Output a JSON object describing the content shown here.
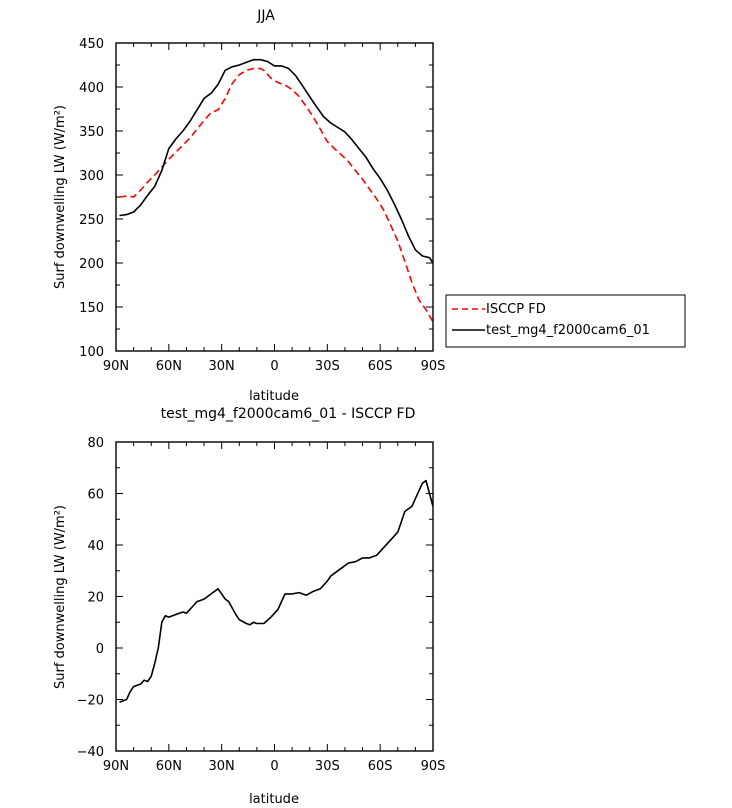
{
  "chart_data": [
    {
      "type": "line",
      "title": "JJA",
      "xlabel": "latitude",
      "ylabel": "Surf downwelling LW (W/m²)",
      "xlim": [
        90,
        -90
      ],
      "ylim": [
        100,
        450
      ],
      "yticks": [
        100,
        150,
        200,
        250,
        300,
        350,
        400,
        450
      ],
      "xticks": [
        {
          "value": 90,
          "label": "90N"
        },
        {
          "value": 60,
          "label": "60N"
        },
        {
          "value": 30,
          "label": "30N"
        },
        {
          "value": 0,
          "label": "0"
        },
        {
          "value": -30,
          "label": "30S"
        },
        {
          "value": -60,
          "label": "60S"
        },
        {
          "value": -90,
          "label": "90S"
        }
      ],
      "legend": {
        "position": "right"
      },
      "series": [
        {
          "name": "ISCCP FD",
          "color": "#ff0000",
          "dash": "dashed",
          "points": [
            [
              88,
              275
            ],
            [
              84,
              276
            ],
            [
              80,
              275
            ],
            [
              76,
              283
            ],
            [
              72,
              292
            ],
            [
              68,
              300
            ],
            [
              64,
              309
            ],
            [
              60,
              318
            ],
            [
              56,
              326
            ],
            [
              52,
              334
            ],
            [
              48,
              342
            ],
            [
              44,
              352
            ],
            [
              40,
              362
            ],
            [
              36,
              371
            ],
            [
              32,
              374
            ],
            [
              28,
              387
            ],
            [
              24,
              404
            ],
            [
              20,
              414
            ],
            [
              16,
              419
            ],
            [
              12,
              421
            ],
            [
              8,
              421
            ],
            [
              6,
              419
            ],
            [
              2,
              410
            ],
            [
              -2,
              405
            ],
            [
              -6,
              402
            ],
            [
              -10,
              397
            ],
            [
              -14,
              389
            ],
            [
              -18,
              378
            ],
            [
              -22,
              366
            ],
            [
              -26,
              352
            ],
            [
              -30,
              338
            ],
            [
              -34,
              330
            ],
            [
              -38,
              323
            ],
            [
              -42,
              315
            ],
            [
              -46,
              305
            ],
            [
              -50,
              295
            ],
            [
              -54,
              284
            ],
            [
              -58,
              273
            ],
            [
              -62,
              260
            ],
            [
              -66,
              243
            ],
            [
              -70,
              225
            ],
            [
              -74,
              202
            ],
            [
              -78,
              178
            ],
            [
              -82,
              158
            ],
            [
              -86,
              147
            ],
            [
              -88,
              140
            ],
            [
              -90,
              133
            ],
            [
              -92,
              130
            ]
          ]
        },
        {
          "name": "test_mg4_f2000cam6_01",
          "color": "#000000",
          "dash": "solid",
          "points": [
            [
              88,
              254
            ],
            [
              84,
              255
            ],
            [
              80,
              258
            ],
            [
              76,
              266
            ],
            [
              72,
              277
            ],
            [
              68,
              287
            ],
            [
              64,
              305
            ],
            [
              60,
              330
            ],
            [
              56,
              341
            ],
            [
              52,
              350
            ],
            [
              48,
              361
            ],
            [
              44,
              374
            ],
            [
              40,
              387
            ],
            [
              36,
              393
            ],
            [
              32,
              403
            ],
            [
              28,
              419
            ],
            [
              24,
              423
            ],
            [
              20,
              425
            ],
            [
              16,
              428
            ],
            [
              12,
              431
            ],
            [
              8,
              431
            ],
            [
              4,
              429
            ],
            [
              0,
              424
            ],
            [
              -4,
              424
            ],
            [
              -8,
              421
            ],
            [
              -12,
              413
            ],
            [
              -16,
              401
            ],
            [
              -20,
              389
            ],
            [
              -24,
              377
            ],
            [
              -28,
              366
            ],
            [
              -32,
              359
            ],
            [
              -36,
              354
            ],
            [
              -40,
              349
            ],
            [
              -44,
              340
            ],
            [
              -48,
              330
            ],
            [
              -52,
              320
            ],
            [
              -56,
              307
            ],
            [
              -60,
              296
            ],
            [
              -64,
              283
            ],
            [
              -68,
              267
            ],
            [
              -72,
              250
            ],
            [
              -76,
              231
            ],
            [
              -80,
              215
            ],
            [
              -84,
              208
            ],
            [
              -88,
              206
            ],
            [
              -90,
              200
            ],
            [
              -92,
              194
            ],
            [
              -94,
              186
            ]
          ]
        }
      ]
    },
    {
      "type": "line",
      "title": "test_mg4_f2000cam6_01 - ISCCP FD",
      "xlabel": "latitude",
      "ylabel": "Surf downwelling LW (W/m²)",
      "xlim": [
        90,
        -90
      ],
      "ylim": [
        -40,
        80
      ],
      "yticks": [
        -40,
        -20,
        0,
        20,
        40,
        60,
        80
      ],
      "xticks": [
        {
          "value": 90,
          "label": "90N"
        },
        {
          "value": 60,
          "label": "60N"
        },
        {
          "value": 30,
          "label": "30N"
        },
        {
          "value": 0,
          "label": "0"
        },
        {
          "value": -30,
          "label": "30S"
        },
        {
          "value": -60,
          "label": "60S"
        },
        {
          "value": -90,
          "label": "90S"
        }
      ],
      "series": [
        {
          "name": "",
          "color": "#000000",
          "dash": "solid",
          "points": [
            [
              88,
              -21
            ],
            [
              84,
              -20
            ],
            [
              82,
              -17
            ],
            [
              80,
              -15
            ],
            [
              76,
              -14
            ],
            [
              74,
              -12.5
            ],
            [
              72,
              -13
            ],
            [
              70,
              -11
            ],
            [
              68,
              -6
            ],
            [
              66,
              0
            ],
            [
              64,
              10
            ],
            [
              62,
              12.5
            ],
            [
              60,
              12
            ],
            [
              56,
              13
            ],
            [
              52,
              14
            ],
            [
              50,
              13.5
            ],
            [
              48,
              15
            ],
            [
              44,
              18
            ],
            [
              40,
              19
            ],
            [
              36,
              21
            ],
            [
              32,
              23
            ],
            [
              28,
              19
            ],
            [
              26,
              18
            ],
            [
              22,
              13
            ],
            [
              20,
              11
            ],
            [
              16,
              9.5
            ],
            [
              14,
              9
            ],
            [
              12,
              10
            ],
            [
              10,
              9.5
            ],
            [
              6,
              9.5
            ],
            [
              2,
              12
            ],
            [
              -2,
              15
            ],
            [
              -4,
              18
            ],
            [
              -6,
              21
            ],
            [
              -10,
              21
            ],
            [
              -14,
              21.5
            ],
            [
              -18,
              20.5
            ],
            [
              -22,
              22
            ],
            [
              -26,
              23
            ],
            [
              -30,
              26
            ],
            [
              -32,
              28
            ],
            [
              -34,
              29
            ],
            [
              -38,
              31
            ],
            [
              -42,
              33
            ],
            [
              -46,
              33.5
            ],
            [
              -50,
              35
            ],
            [
              -54,
              35
            ],
            [
              -58,
              36
            ],
            [
              -62,
              39
            ],
            [
              -66,
              42
            ],
            [
              -70,
              45
            ],
            [
              -74,
              53
            ],
            [
              -76,
              54
            ],
            [
              -78,
              55
            ],
            [
              -80,
              58
            ],
            [
              -84,
              64
            ],
            [
              -86,
              65
            ],
            [
              -88,
              60
            ],
            [
              -90,
              55
            ]
          ]
        }
      ]
    }
  ]
}
